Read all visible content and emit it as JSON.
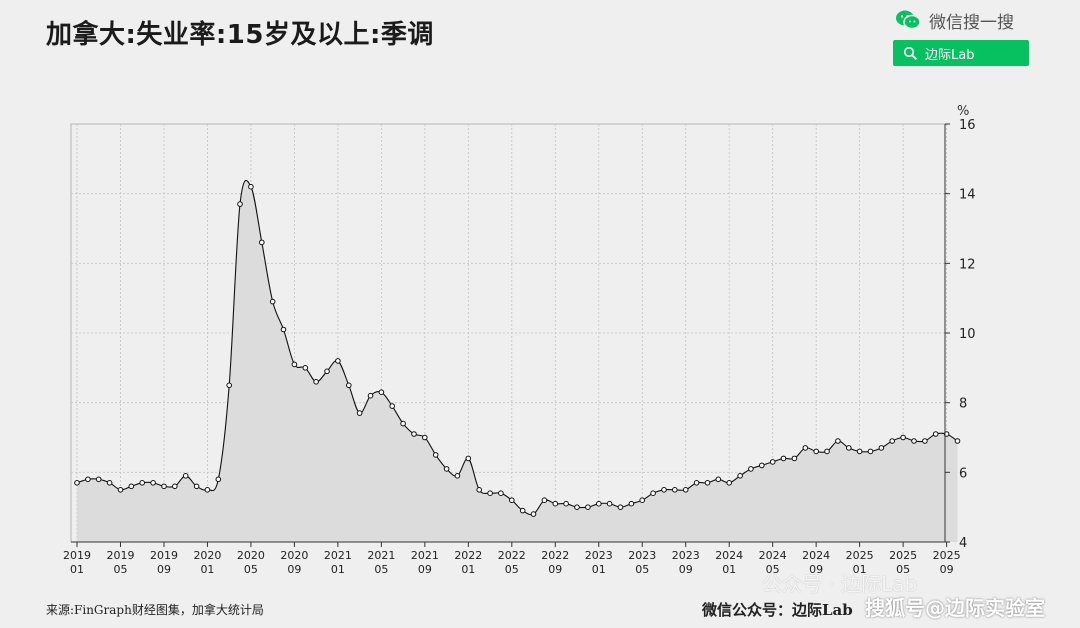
{
  "header": {
    "title": "加拿大:失业率:15岁及以上:季调",
    "brand_text": "微信搜一搜",
    "brand_icon": "wechat-icon",
    "search_label": "边际Lab",
    "search_icon": "search-icon",
    "accent_color": "#07c160"
  },
  "footer": {
    "source": "来源:FinGraph财经图集，加拿大统计局",
    "account": "微信公众号：边际Lab",
    "watermark_1": "公众号 · 边际Lab",
    "watermark_2": "搜狐号@边际实验室"
  },
  "chart_data": {
    "type": "line",
    "unit": "%",
    "ylim": [
      4,
      16
    ],
    "yticks": [
      4,
      6,
      8,
      10,
      12,
      14,
      16
    ],
    "grid": true,
    "fill": "area",
    "xticks": [
      {
        "top": "2019",
        "bottom": "01"
      },
      {
        "top": "2019",
        "bottom": "05"
      },
      {
        "top": "2019",
        "bottom": "09"
      },
      {
        "top": "2020",
        "bottom": "01"
      },
      {
        "top": "2020",
        "bottom": "05"
      },
      {
        "top": "2020",
        "bottom": "09"
      },
      {
        "top": "2021",
        "bottom": "01"
      },
      {
        "top": "2021",
        "bottom": "05"
      },
      {
        "top": "2021",
        "bottom": "09"
      },
      {
        "top": "2022",
        "bottom": "01"
      },
      {
        "top": "2022",
        "bottom": "05"
      },
      {
        "top": "2022",
        "bottom": "09"
      },
      {
        "top": "2023",
        "bottom": "01"
      },
      {
        "top": "2023",
        "bottom": "05"
      },
      {
        "top": "2023",
        "bottom": "09"
      },
      {
        "top": "2024",
        "bottom": "01"
      },
      {
        "top": "2024",
        "bottom": "05"
      },
      {
        "top": "2024",
        "bottom": "09"
      },
      {
        "top": "2025",
        "bottom": "01"
      },
      {
        "top": "2025",
        "bottom": "05"
      },
      {
        "top": "2025",
        "bottom": "09"
      }
    ],
    "x_start": "2019-01",
    "x_end": "2025-10",
    "values": [
      5.7,
      5.8,
      5.8,
      5.7,
      5.5,
      5.6,
      5.7,
      5.7,
      5.6,
      5.6,
      5.9,
      5.6,
      5.5,
      5.8,
      8.5,
      13.7,
      14.2,
      12.6,
      10.9,
      10.1,
      9.1,
      9.0,
      8.6,
      8.9,
      9.2,
      8.5,
      7.7,
      8.2,
      8.3,
      7.9,
      7.4,
      7.1,
      7.0,
      6.5,
      6.1,
      5.9,
      6.4,
      5.5,
      5.4,
      5.4,
      5.2,
      4.9,
      4.8,
      5.2,
      5.1,
      5.1,
      5.0,
      5.0,
      5.1,
      5.1,
      5.0,
      5.1,
      5.2,
      5.4,
      5.5,
      5.5,
      5.5,
      5.7,
      5.7,
      5.8,
      5.7,
      5.9,
      6.1,
      6.2,
      6.3,
      6.4,
      6.4,
      6.7,
      6.6,
      6.6,
      6.9,
      6.7,
      6.6,
      6.6,
      6.7,
      6.9,
      7.0,
      6.9,
      6.9,
      7.1,
      7.1,
      6.9
    ]
  }
}
